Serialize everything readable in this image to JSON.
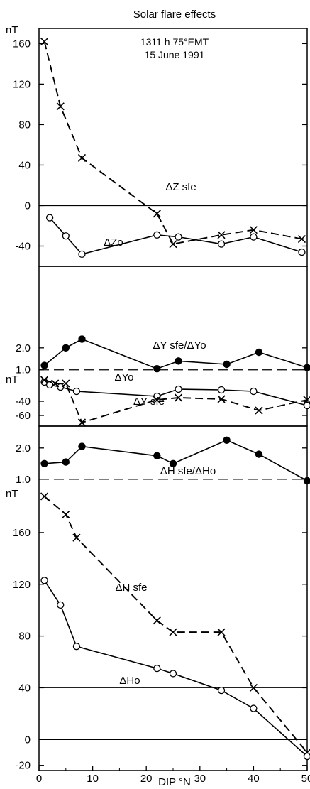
{
  "figure": {
    "title": "Solar flare effects",
    "annotation_time": "1311 h 75°EMT",
    "annotation_date": "15 June 1991",
    "xlabel": "DIP °N",
    "x_ticks": [
      0,
      10,
      20,
      30,
      40,
      50
    ],
    "xlim": [
      0,
      50
    ]
  },
  "chart_data": [
    {
      "type": "line",
      "panel": "Z",
      "ylabel": "nT",
      "ylim": [
        -60,
        175
      ],
      "y_ticks": [
        160,
        120,
        80,
        40,
        0,
        -40
      ],
      "reference_lines": [
        0
      ],
      "series": [
        {
          "name": "ΔZ sfe",
          "marker": "x",
          "style": "dashed",
          "x": [
            1,
            4,
            8,
            22,
            25,
            34,
            40,
            49
          ],
          "y": [
            162,
            98,
            47,
            -8,
            -38,
            -29,
            -24,
            -33
          ]
        },
        {
          "name": "ΔZo",
          "marker": "open-circle",
          "style": "solid",
          "x": [
            2,
            5,
            8,
            22,
            26,
            34,
            40,
            49
          ],
          "y": [
            -12,
            -30,
            -48,
            -29,
            -31,
            -38,
            -31,
            -46
          ]
        }
      ]
    },
    {
      "type": "line",
      "panel": "Y-ratio",
      "ylabel": "",
      "ylim": [
        0.7,
        2.9
      ],
      "y_ticks": [
        2.0,
        1.0
      ],
      "reference_lines": [
        1.0
      ],
      "series": [
        {
          "name": "ΔY sfe/ΔYo",
          "marker": "filled-circle",
          "style": "solid",
          "x": [
            1,
            5,
            8,
            22,
            26,
            35,
            41,
            50
          ],
          "y": [
            1.2,
            2.0,
            2.4,
            1.05,
            1.4,
            1.25,
            1.8,
            1.1
          ]
        }
      ]
    },
    {
      "type": "line",
      "panel": "Y",
      "ylabel": "nT",
      "ylim": [
        -75,
        -5
      ],
      "y_ticks": [
        -40,
        -60
      ],
      "series": [
        {
          "name": "ΔYo",
          "marker": "open-circle",
          "style": "solid",
          "x": [
            1,
            2,
            4,
            7,
            22,
            26,
            34,
            40,
            50
          ],
          "y": [
            -13,
            -17,
            -20,
            -26,
            -33,
            -23,
            -24,
            -26,
            -46
          ]
        },
        {
          "name": "ΔY sfe",
          "marker": "x",
          "style": "dashed",
          "x": [
            1,
            3,
            5,
            8,
            22,
            26,
            34,
            41,
            50
          ],
          "y": [
            -10,
            -15,
            -15,
            -70,
            -38,
            -35,
            -37,
            -53,
            -38
          ]
        }
      ]
    },
    {
      "type": "line",
      "panel": "H-ratio",
      "ylabel": "",
      "ylim": [
        0.7,
        2.7
      ],
      "y_ticks": [
        2.0,
        1.0
      ],
      "reference_lines": [
        1.0
      ],
      "series": [
        {
          "name": "ΔH sfe/ΔHo",
          "marker": "filled-circle",
          "style": "solid",
          "x": [
            1,
            5,
            8,
            22,
            25,
            35,
            41,
            50
          ],
          "y": [
            1.5,
            1.55,
            2.05,
            1.75,
            1.5,
            2.25,
            1.8,
            0.95
          ]
        }
      ]
    },
    {
      "type": "line",
      "panel": "H",
      "ylabel": "nT",
      "ylim": [
        -24,
        194
      ],
      "y_ticks": [
        160,
        120,
        80,
        40,
        0,
        -20
      ],
      "reference_lines": [
        0,
        80,
        40
      ],
      "series": [
        {
          "name": "ΔH sfe",
          "marker": "x",
          "style": "dashed",
          "x": [
            1,
            5,
            7,
            22,
            25,
            34,
            40,
            50
          ],
          "y": [
            188,
            174,
            156,
            92,
            83,
            83,
            40,
            -10
          ]
        },
        {
          "name": "ΔHo",
          "marker": "open-circle",
          "style": "solid",
          "x": [
            1,
            4,
            7,
            22,
            25,
            34,
            40,
            50
          ],
          "y": [
            123,
            104,
            72,
            55,
            51,
            38,
            24,
            -13
          ]
        }
      ]
    }
  ]
}
